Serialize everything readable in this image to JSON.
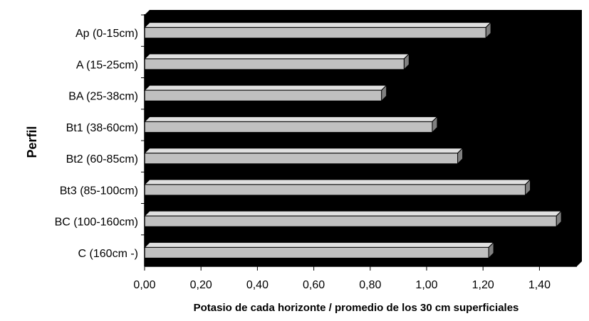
{
  "chart_data": {
    "type": "bar",
    "orientation": "horizontal",
    "categories": [
      "Ap (0-15cm)",
      "A (15-25cm)",
      "BA (25-38cm)",
      "Bt1 (38-60cm)",
      "Bt2 (60-85cm)",
      "Bt3 (85-100cm)",
      "BC (100-160cm)",
      "C (160cm -)"
    ],
    "values": [
      1.21,
      0.92,
      0.84,
      1.02,
      1.11,
      1.35,
      1.46,
      1.22
    ],
    "title": "",
    "xlabel": "Potasio de cada horizonte / promedio de los 30 cm superficiales",
    "ylabel": "Perfil",
    "xlim": [
      0,
      1.5
    ],
    "x_ticks": [
      "0,00",
      "0,20",
      "0,40",
      "0,60",
      "0,80",
      "1,00",
      "1,20",
      "1,40"
    ],
    "x_tick_values": [
      0,
      0.2,
      0.4,
      0.6,
      0.8,
      1.0,
      1.2,
      1.4
    ],
    "grid": false,
    "legend": "none",
    "colors": {
      "plot_background": "#000000",
      "bar_front": "#c0c0c0",
      "bar_top": "#e0e0e0",
      "bar_side": "#808080",
      "bar_outline": "#000000"
    }
  }
}
